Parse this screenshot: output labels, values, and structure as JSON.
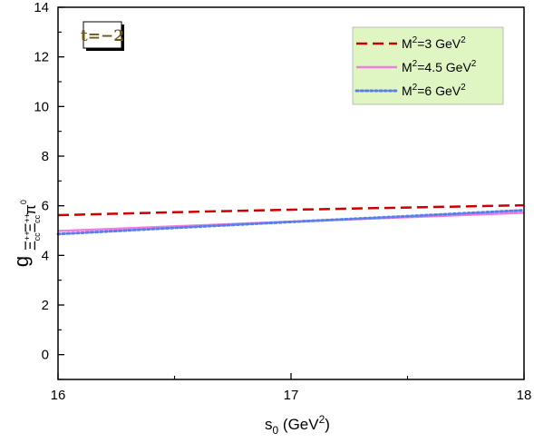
{
  "chart_data": {
    "type": "line",
    "title": "",
    "xlabel": {
      "base": "s",
      "sub": "0",
      "unit_open": " (GeV",
      "sup": "2",
      "unit_close": ")"
    },
    "ylabel": {
      "base": "g",
      "sub": "Ξ",
      "sub_sup": "++",
      "sub_sub": "cc",
      "sub2": "Ξ",
      "sub2_sup": "++",
      "sub2_sub": "cc",
      "sub3": "π",
      "sub3_sup": "0"
    },
    "xlim": [
      16,
      18
    ],
    "ylim": [
      -1,
      14
    ],
    "xticks": [
      "16",
      "17",
      "18"
    ],
    "yticks": [
      "0",
      "2",
      "4",
      "6",
      "8",
      "10",
      "12",
      "14"
    ],
    "annotation": "t=−2",
    "series": [
      {
        "name": "M²=3 GeV²",
        "legend": {
          "a": "M",
          "a_sup": "2",
          "b": "=3 GeV",
          "b_sup": "2"
        },
        "color": "#cc0000",
        "style": "dashed",
        "x": [
          16,
          16.5,
          17,
          17.5,
          18
        ],
        "y": [
          5.62,
          5.74,
          5.84,
          5.93,
          6.02
        ]
      },
      {
        "name": "M²=4.5 GeV²",
        "legend": {
          "a": "M",
          "a_sup": "2",
          "b": "=4.5 GeV",
          "b_sup": "2"
        },
        "color": "#f07de0",
        "style": "solid",
        "x": [
          16,
          16.5,
          17,
          17.5,
          18
        ],
        "y": [
          4.98,
          5.17,
          5.36,
          5.54,
          5.72
        ]
      },
      {
        "name": "M²=6 GeV²",
        "legend": {
          "a": "M",
          "a_sup": "2",
          "b": "=6 GeV",
          "b_sup": "2"
        },
        "color": "#5b7fe8",
        "style": "dotted",
        "x": [
          16,
          16.5,
          17,
          17.5,
          18
        ],
        "y": [
          4.86,
          5.11,
          5.35,
          5.58,
          5.82
        ]
      }
    ],
    "legend_position": "top-right",
    "legend_background": "#dff5c2",
    "grid": false
  }
}
